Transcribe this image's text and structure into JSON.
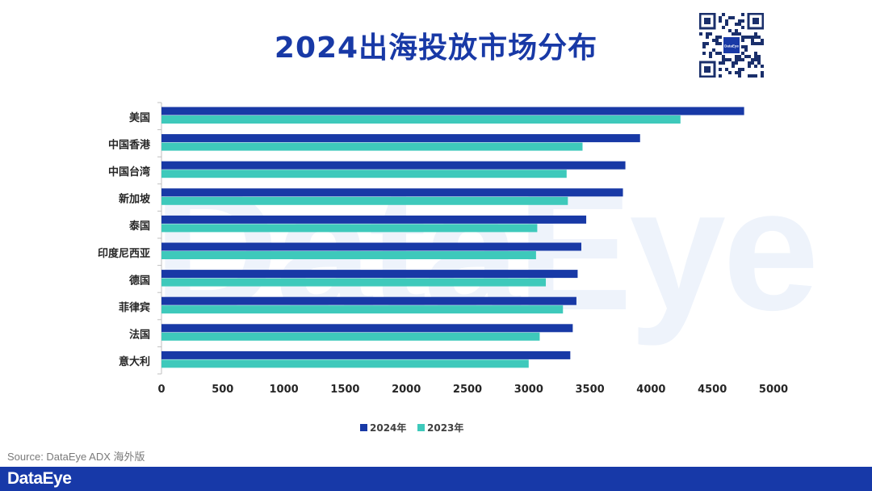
{
  "title": "2024出海投放市场分布",
  "watermark": "DataEye",
  "source": "Source: DataEye ADX 海外版",
  "brand": "DataEye",
  "qr_center_label": "DataEye",
  "colors": {
    "title": "#1839a6",
    "series_2024": "#1839a6",
    "series_2023": "#3ec9bb",
    "footer": "#1739a8"
  },
  "chart_data": {
    "type": "bar",
    "orientation": "horizontal",
    "categories": [
      "美国",
      "中国香港",
      "中国台湾",
      "新加坡",
      "泰国",
      "印度尼西亚",
      "德国",
      "菲律宾",
      "法国",
      "意大利"
    ],
    "series": [
      {
        "name": "2024年",
        "values": [
          4760,
          3910,
          3790,
          3770,
          3470,
          3430,
          3400,
          3390,
          3360,
          3340
        ]
      },
      {
        "name": "2023年",
        "values": [
          4240,
          3440,
          3310,
          3320,
          3070,
          3060,
          3140,
          3280,
          3090,
          3000
        ]
      }
    ],
    "xlim": [
      0,
      5000
    ],
    "xticks": [
      0,
      500,
      1000,
      1500,
      2000,
      2500,
      3000,
      3500,
      4000,
      4500,
      5000
    ],
    "grid": false,
    "legend_position": "bottom"
  }
}
